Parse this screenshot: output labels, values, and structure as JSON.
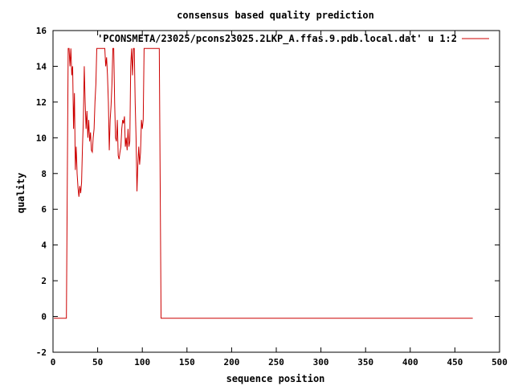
{
  "chart_data": {
    "type": "line",
    "title": "consensus based quality prediction",
    "xlabel": "sequence position",
    "ylabel": "quality",
    "xlim": [
      0,
      500
    ],
    "ylim": [
      -2,
      16
    ],
    "x_ticks": [
      "0",
      "50",
      "100",
      "150",
      "200",
      "250",
      "300",
      "350",
      "400",
      "450",
      "500"
    ],
    "y_ticks": [
      "-2",
      "0",
      "2",
      "4",
      "6",
      "8",
      "10",
      "12",
      "14",
      "16"
    ],
    "grid": false,
    "legend_position": "top-right",
    "series": [
      {
        "name": "'PCONSMETA/23025/pcons23025.2LKP_A.ffas.9.pdb.local.dat' u 1:2",
        "color": "#cc0000",
        "points": [
          [
            1,
            -0.1
          ],
          [
            15,
            -0.1
          ],
          [
            16,
            7.5
          ],
          [
            17,
            15
          ],
          [
            18,
            15
          ],
          [
            19,
            14
          ],
          [
            20,
            15
          ],
          [
            21,
            13.5
          ],
          [
            22,
            14
          ],
          [
            23,
            10.5
          ],
          [
            24,
            12.5
          ],
          [
            25,
            8.2
          ],
          [
            26,
            9.5
          ],
          [
            27,
            8
          ],
          [
            28,
            7.2
          ],
          [
            29,
            6.7
          ],
          [
            30,
            7.3
          ],
          [
            31,
            6.9
          ],
          [
            32,
            7.5
          ],
          [
            33,
            9.5
          ],
          [
            34,
            11
          ],
          [
            35,
            14
          ],
          [
            36,
            12
          ],
          [
            37,
            10.5
          ],
          [
            38,
            11.5
          ],
          [
            39,
            10
          ],
          [
            40,
            11
          ],
          [
            41,
            9.8
          ],
          [
            42,
            10.3
          ],
          [
            43,
            9.3
          ],
          [
            44,
            9.2
          ],
          [
            45,
            10
          ],
          [
            46,
            10.5
          ],
          [
            47,
            12
          ],
          [
            48,
            13
          ],
          [
            49,
            15
          ],
          [
            50,
            15
          ],
          [
            52,
            15
          ],
          [
            54,
            15
          ],
          [
            56,
            15
          ],
          [
            58,
            15
          ],
          [
            59,
            14
          ],
          [
            60,
            14.5
          ],
          [
            61,
            13.5
          ],
          [
            62,
            12
          ],
          [
            63,
            9.3
          ],
          [
            64,
            11
          ],
          [
            65,
            11.8
          ],
          [
            66,
            13
          ],
          [
            67,
            15
          ],
          [
            68,
            15
          ],
          [
            69,
            12
          ],
          [
            70,
            10
          ],
          [
            71,
            9.8
          ],
          [
            72,
            11
          ],
          [
            73,
            9
          ],
          [
            74,
            8.8
          ],
          [
            75,
            9.2
          ],
          [
            76,
            9.5
          ],
          [
            77,
            10.5
          ],
          [
            78,
            11
          ],
          [
            79,
            10.8
          ],
          [
            80,
            11.2
          ],
          [
            81,
            9.5
          ],
          [
            82,
            10
          ],
          [
            83,
            9.3
          ],
          [
            84,
            10.5
          ],
          [
            85,
            9.5
          ],
          [
            86,
            9.8
          ],
          [
            87,
            14
          ],
          [
            88,
            15
          ],
          [
            89,
            13.5
          ],
          [
            90,
            15
          ],
          [
            91,
            15
          ],
          [
            92,
            12
          ],
          [
            93,
            10
          ],
          [
            94,
            7
          ],
          [
            95,
            8.5
          ],
          [
            96,
            9.5
          ],
          [
            97,
            8.5
          ],
          [
            98,
            9.2
          ],
          [
            99,
            11
          ],
          [
            100,
            10.5
          ],
          [
            101,
            11
          ],
          [
            102,
            15
          ],
          [
            104,
            15
          ],
          [
            108,
            15
          ],
          [
            112,
            15
          ],
          [
            116,
            15
          ],
          [
            118,
            15
          ],
          [
            119,
            15
          ],
          [
            120,
            7.5
          ],
          [
            121,
            -0.1
          ],
          [
            200,
            -0.1
          ],
          [
            300,
            -0.1
          ],
          [
            400,
            -0.1
          ],
          [
            470,
            -0.1
          ]
        ]
      }
    ]
  }
}
